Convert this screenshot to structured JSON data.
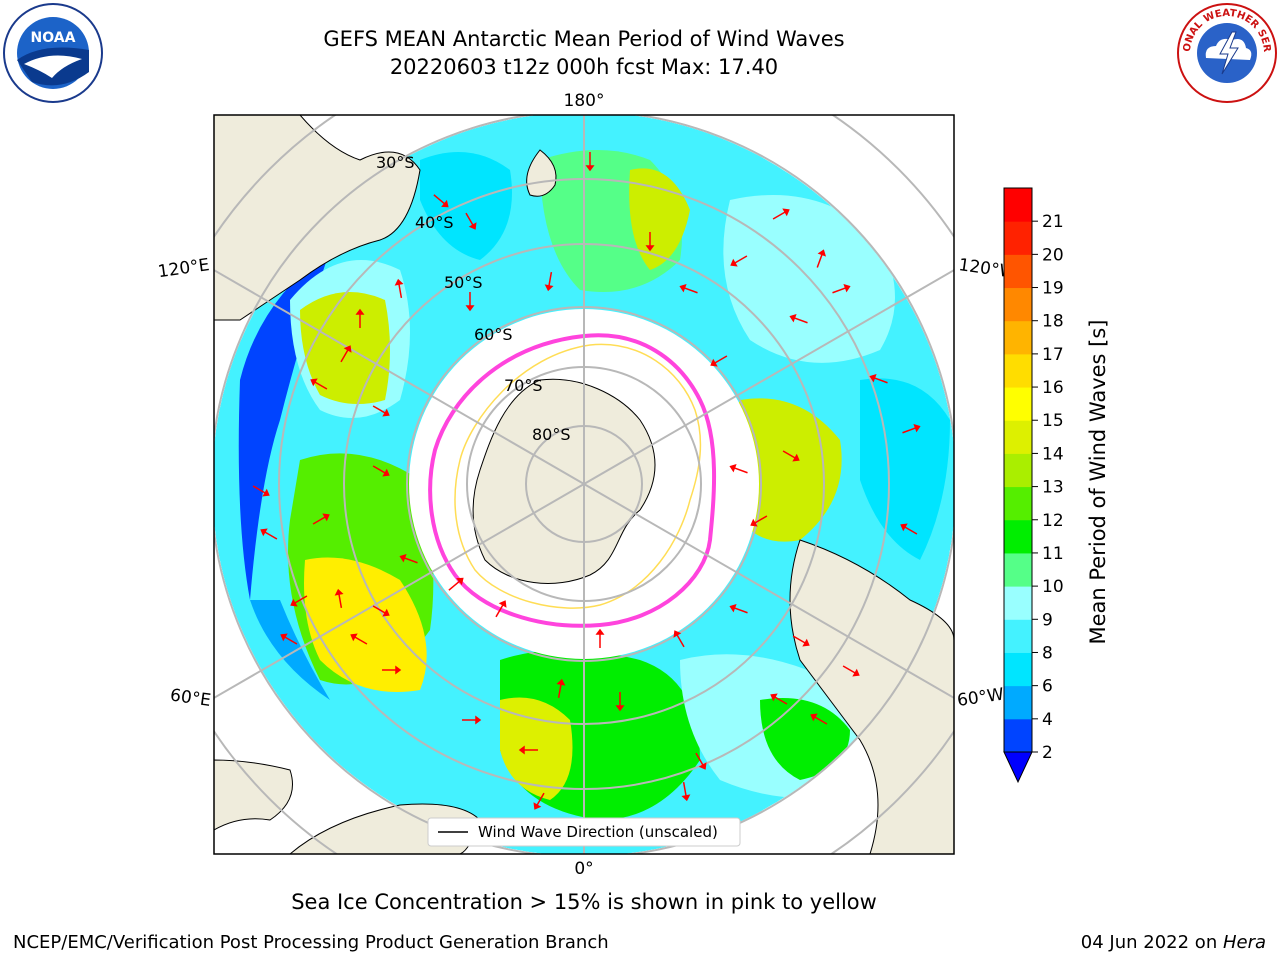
{
  "header": {
    "title_line1": "GEFS MEAN Antarctic Mean Period of Wind Waves",
    "title_line2": "20220603 t12z 000h fcst   Max: 17.40"
  },
  "logos": {
    "left": {
      "icon": "noaa-logo",
      "text": "NOAA"
    },
    "right": {
      "icon": "nws-logo",
      "text": "NATIONAL WEATHER SERVICE"
    }
  },
  "map": {
    "projection": "south-polar-stereographic",
    "longitude_labels": {
      "top": "180°",
      "bottom": "0°",
      "upper_left": "120°E",
      "lower_left": "60°E",
      "upper_right": "120°W",
      "lower_right": "60°W"
    },
    "latitude_labels": [
      "30°S",
      "40°S",
      "50°S",
      "60°S",
      "70°S",
      "80°S"
    ],
    "legend": {
      "label": "Wind Wave Direction (unscaled)"
    },
    "colors": {
      "land": "#efecdc",
      "sea_ice_low": "#ff44dd",
      "sea_ice_high": "#ffdd55",
      "arrow": "#ff0000",
      "gridline": "#b8b8b8"
    }
  },
  "colorbar": {
    "label": "Mean Period of Wind Waves [s]",
    "ticks": [
      "2",
      "4",
      "6",
      "8",
      "9",
      "10",
      "11",
      "12",
      "13",
      "14",
      "15",
      "16",
      "17",
      "18",
      "19",
      "20",
      "21"
    ],
    "colors": [
      "#0044ff",
      "#00aaff",
      "#00e5ff",
      "#44f2ff",
      "#99ffff",
      "#55ff88",
      "#00ee00",
      "#55ee00",
      "#aaee00",
      "#ddf000",
      "#ffff00",
      "#ffdd00",
      "#ffb400",
      "#ff8800",
      "#ff5500",
      "#ff2200",
      "#ff0000"
    ],
    "extend_color": "#0000ff"
  },
  "caption": "Sea Ice Concentration > 15% is shown in pink to yellow",
  "footer": {
    "left": "NCEP/EMC/Verification Post Processing Product Generation Branch",
    "right_date": "04 Jun 2022 on ",
    "right_host": "Hera"
  }
}
